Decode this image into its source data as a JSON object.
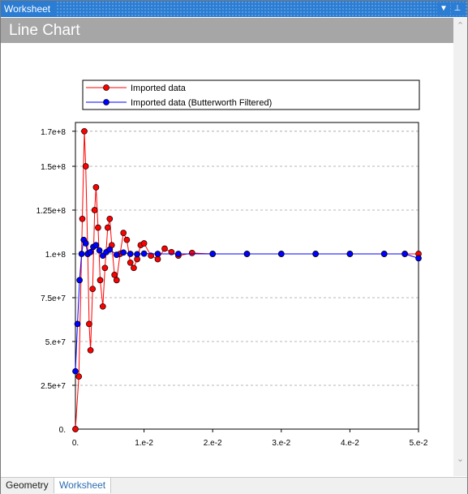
{
  "window": {
    "title": "Worksheet"
  },
  "header": {
    "title": "Line Chart"
  },
  "tabs": [
    {
      "label": "Geometry",
      "active": false
    },
    {
      "label": "Worksheet",
      "active": true
    }
  ],
  "colors": {
    "accent": "#2b7cd3",
    "header_bg": "#a6a6a6",
    "series_raw": "#ff0000",
    "series_filtered": "#0000ff",
    "marker_outline": "#000000"
  },
  "icons": {
    "dropdown": "chevron-down-icon",
    "pin": "pin-icon",
    "scroll_up": "scroll-up-icon",
    "scroll_down": "scroll-down-icon"
  },
  "chart_data": {
    "type": "line",
    "title": "",
    "xlabel": "",
    "ylabel": "",
    "xlim": [
      0,
      0.05
    ],
    "ylim": [
      0,
      175000000
    ],
    "x_ticks": [
      {
        "value": 0,
        "label": "0."
      },
      {
        "value": 0.01,
        "label": "1.e-2"
      },
      {
        "value": 0.02,
        "label": "2.e-2"
      },
      {
        "value": 0.03,
        "label": "3.e-2"
      },
      {
        "value": 0.04,
        "label": "4.e-2"
      },
      {
        "value": 0.05,
        "label": "5.e-2"
      }
    ],
    "y_ticks": [
      {
        "value": 0,
        "label": "0."
      },
      {
        "value": 25000000,
        "label": "2.5e+7"
      },
      {
        "value": 50000000,
        "label": "5.e+7"
      },
      {
        "value": 75000000,
        "label": "7.5e+7"
      },
      {
        "value": 100000000,
        "label": "1.e+8"
      },
      {
        "value": 125000000,
        "label": "1.25e+8"
      },
      {
        "value": 150000000,
        "label": "1.5e+8"
      },
      {
        "value": 170000000,
        "label": "1.7e+8"
      }
    ],
    "grid": {
      "horizontal_dashed": true
    },
    "legend": {
      "placement": "top"
    },
    "series": [
      {
        "name": "Imported data",
        "color": "#ff0000",
        "x": [
          0,
          0.0005,
          0.001,
          0.0013,
          0.0015,
          0.0018,
          0.002,
          0.0022,
          0.0025,
          0.0028,
          0.003,
          0.0033,
          0.0036,
          0.004,
          0.0043,
          0.0047,
          0.005,
          0.0053,
          0.0057,
          0.006,
          0.0065,
          0.007,
          0.0075,
          0.008,
          0.0085,
          0.009,
          0.0095,
          0.01,
          0.011,
          0.012,
          0.013,
          0.014,
          0.015,
          0.017,
          0.02,
          0.025,
          0.03,
          0.035,
          0.04,
          0.045,
          0.048,
          0.05
        ],
        "values": [
          0,
          30000000,
          120000000,
          170000000,
          150000000,
          100000000,
          60000000,
          45000000,
          80000000,
          125000000,
          138000000,
          115000000,
          85000000,
          70000000,
          92000000,
          115000000,
          120000000,
          105000000,
          88000000,
          85000000,
          100000000,
          112000000,
          108000000,
          95000000,
          92000000,
          97000000,
          105000000,
          106000000,
          99000000,
          97000000,
          103000000,
          101000000,
          99000000,
          100500000,
          100000000,
          100000000,
          100000000,
          100000000,
          100000000,
          100000000,
          100000000,
          100000000
        ]
      },
      {
        "name": "Imported data (Butterworth Filtered)",
        "color": "#0000ff",
        "x": [
          0,
          0.0003,
          0.0006,
          0.0009,
          0.0012,
          0.0015,
          0.0018,
          0.0022,
          0.0026,
          0.003,
          0.0035,
          0.004,
          0.0045,
          0.005,
          0.006,
          0.007,
          0.008,
          0.009,
          0.01,
          0.012,
          0.015,
          0.02,
          0.025,
          0.03,
          0.035,
          0.04,
          0.045,
          0.048,
          0.05
        ],
        "values": [
          33000000,
          60000000,
          85000000,
          100000000,
          108000000,
          106000000,
          100000000,
          101000000,
          104000000,
          105000000,
          102000000,
          99000000,
          101000000,
          102500000,
          99500000,
          100800000,
          100000000,
          99800000,
          100200000,
          100000000,
          100000000,
          100000000,
          100000000,
          100000000,
          100000000,
          100000000,
          100000000,
          100000000,
          97500000
        ]
      }
    ]
  }
}
